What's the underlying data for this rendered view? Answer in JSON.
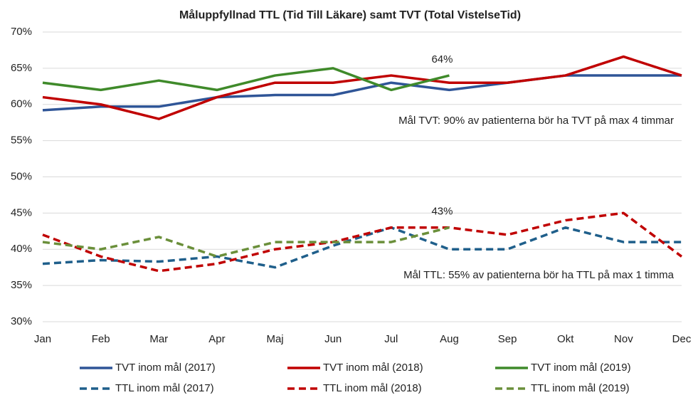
{
  "chart_data": {
    "type": "line",
    "title": "Måluppfyllnad TTL (Tid Till Läkare) samt TVT (Total VistelseTid)",
    "categories": [
      "Jan",
      "Feb",
      "Mar",
      "Apr",
      "Maj",
      "Jun",
      "Jul",
      "Aug",
      "Sep",
      "Okt",
      "Nov",
      "Dec"
    ],
    "series": [
      {
        "name": "TVT inom mål (2017)",
        "color": "#2f5597",
        "dashed": false,
        "values": [
          59.2,
          59.7,
          59.7,
          61.0,
          61.3,
          61.3,
          63.0,
          62.0,
          63.0,
          64.0,
          64.0,
          64.0
        ]
      },
      {
        "name": "TVT inom mål (2018)",
        "color": "#c00000",
        "dashed": false,
        "values": [
          61,
          60,
          58,
          61,
          63,
          63,
          64,
          63,
          63,
          64,
          66.6,
          64
        ]
      },
      {
        "name": "TVT inom mål (2019)",
        "color": "#3f8a2a",
        "dashed": false,
        "values": [
          63,
          62,
          63.3,
          62,
          64,
          65,
          62,
          64,
          null,
          null,
          null,
          null
        ],
        "value_labels": [
          null,
          null,
          null,
          null,
          null,
          null,
          null,
          "64%",
          null,
          null,
          null,
          null
        ]
      },
      {
        "name": "TTL inom mål (2017)",
        "color": "#1f5f8b",
        "dashed": true,
        "values": [
          38,
          38.5,
          38.3,
          39,
          37.5,
          40.5,
          43,
          40,
          40,
          43,
          41,
          41
        ]
      },
      {
        "name": "TTL inom mål (2018)",
        "color": "#c00000",
        "dashed": true,
        "values": [
          42,
          39,
          37,
          38,
          40,
          41,
          43,
          43,
          42,
          44,
          45,
          39
        ]
      },
      {
        "name": "TTL inom mål (2019)",
        "color": "#6a8f3a",
        "dashed": true,
        "values": [
          41,
          40,
          41.7,
          39,
          41,
          41,
          41,
          43,
          null,
          null,
          null,
          null
        ],
        "value_labels": [
          null,
          null,
          null,
          null,
          null,
          null,
          null,
          "43%",
          null,
          null,
          null,
          null
        ]
      }
    ],
    "annotations": [
      "Mål TVT: 90% av patienterna bör ha TVT på max 4 timmar",
      "Mål TTL: 55% av patienterna bör ha TTL på max 1 timma"
    ],
    "ylim": [
      30,
      70
    ],
    "yticks": [
      {
        "value": 30,
        "label": "30%"
      },
      {
        "value": 35,
        "label": "35%"
      },
      {
        "value": 40,
        "label": "40%"
      },
      {
        "value": 45,
        "label": "45%"
      },
      {
        "value": 50,
        "label": "50%"
      },
      {
        "value": 55,
        "label": "55%"
      },
      {
        "value": 60,
        "label": "60%"
      },
      {
        "value": 65,
        "label": "65%"
      },
      {
        "value": 70,
        "label": "70%"
      }
    ],
    "grid": true
  }
}
